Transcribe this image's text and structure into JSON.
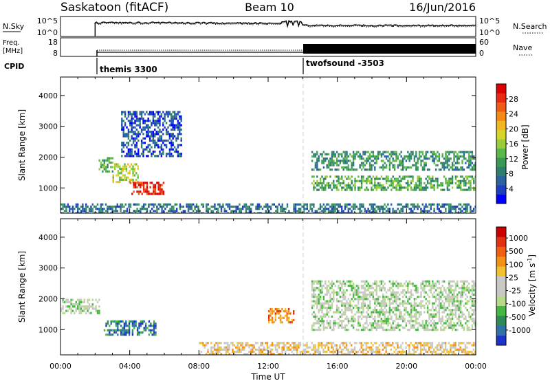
{
  "header": {
    "station": "Saskatoon (fitACF)",
    "beam": "Beam 10",
    "date": "16/Jun/2016"
  },
  "noise_panel": {
    "left_label": "N.Sky",
    "left_ticks": [
      "10^5",
      "10^0"
    ],
    "right_ticks": [
      "10^5",
      "10^0"
    ],
    "right_label": "N.Search"
  },
  "freq_panel": {
    "left_label_1": "Freq.",
    "left_label_2": "[MHz]",
    "left_ticks": [
      "18",
      "8"
    ],
    "right_ticks": [
      "60",
      "0"
    ],
    "right_label": "Nave"
  },
  "cpid": {
    "label": "CPID",
    "programs": [
      {
        "name": "themis 3300",
        "start_hour": 2.0
      },
      {
        "name": "twofsound -3503",
        "start_hour": 14.0
      }
    ]
  },
  "chart_data": [
    {
      "type": "heatmap",
      "name": "power",
      "ylabel": "Slant Range [km]",
      "ylim": [
        180,
        4600
      ],
      "yticks": [
        1000,
        2000,
        3000,
        4000
      ],
      "xlim": [
        0,
        24
      ],
      "colorbar": {
        "label": "Power [dB]",
        "ticks": [
          "4",
          "8",
          "12",
          "16",
          "20",
          "24",
          "28"
        ],
        "colors": [
          "#0000ff",
          "#1f3fbf",
          "#2a63a0",
          "#2e7d6e",
          "#3a9a55",
          "#5ab84a",
          "#9acd3a",
          "#d4d62a",
          "#f0b820",
          "#f38a18",
          "#f05a14",
          "#e82a10",
          "#dd0000"
        ]
      },
      "features": [
        {
          "x": 2.2,
          "x2": 3.0,
          "y": 1500,
          "y2": 2000,
          "level": 5
        },
        {
          "x": 3.0,
          "x2": 4.5,
          "y": 1200,
          "y2": 1800,
          "level": 7
        },
        {
          "x": 4.0,
          "x2": 6.0,
          "y": 800,
          "y2": 1200,
          "level": 12
        },
        {
          "x": 3.5,
          "x2": 7.0,
          "y": 2000,
          "y2": 3500,
          "level": 2
        },
        {
          "x": 14.5,
          "x2": 24.0,
          "y": 1600,
          "y2": 2200,
          "level": 4
        },
        {
          "x": 14.5,
          "x2": 24.0,
          "y": 900,
          "y2": 1400,
          "level": 5
        },
        {
          "x": 0.0,
          "x2": 24.0,
          "y": 200,
          "y2": 500,
          "level": 3
        }
      ]
    },
    {
      "type": "heatmap",
      "name": "velocity",
      "ylabel": "Slant Range [km]",
      "ylim": [
        180,
        4600
      ],
      "yticks": [
        1000,
        2000,
        3000,
        4000
      ],
      "xlim": [
        0,
        24
      ],
      "xticks": [
        "00:00",
        "04:00",
        "08:00",
        "12:00",
        "16:00",
        "20:00",
        "00:00"
      ],
      "xlabel": "Time UT",
      "colorbar": {
        "label": "Velocity [m s^-1]",
        "ticks": [
          "1000",
          "500",
          "100",
          "25",
          "-25",
          "-100",
          "-500",
          "-1000"
        ],
        "colors": [
          "#1c35c8",
          "#2f72a8",
          "#2e8b57",
          "#44b840",
          "#b7d98a",
          "#c8c8c4",
          "#c8c8c4",
          "#f3c030",
          "#f39018",
          "#f06010",
          "#e03010",
          "#cc0000"
        ]
      },
      "features": [
        {
          "x": 0.0,
          "x2": 2.2,
          "y": 1500,
          "y2": 2000,
          "level": 5
        },
        {
          "x": 2.5,
          "x2": 5.5,
          "y": 800,
          "y2": 1300,
          "level": 2
        },
        {
          "x": 12.0,
          "x2": 13.5,
          "y": 1200,
          "y2": 1700,
          "level": 9
        },
        {
          "x": 14.5,
          "x2": 24.0,
          "y": 1000,
          "y2": 2600,
          "level": 5
        },
        {
          "x": 8.0,
          "x2": 24.0,
          "y": 200,
          "y2": 600,
          "level": 7
        }
      ]
    }
  ],
  "time_axis": {
    "ticks": [
      "00:00",
      "04:00",
      "08:00",
      "12:00",
      "16:00",
      "20:00",
      "00:00"
    ],
    "label": "Time UT"
  }
}
